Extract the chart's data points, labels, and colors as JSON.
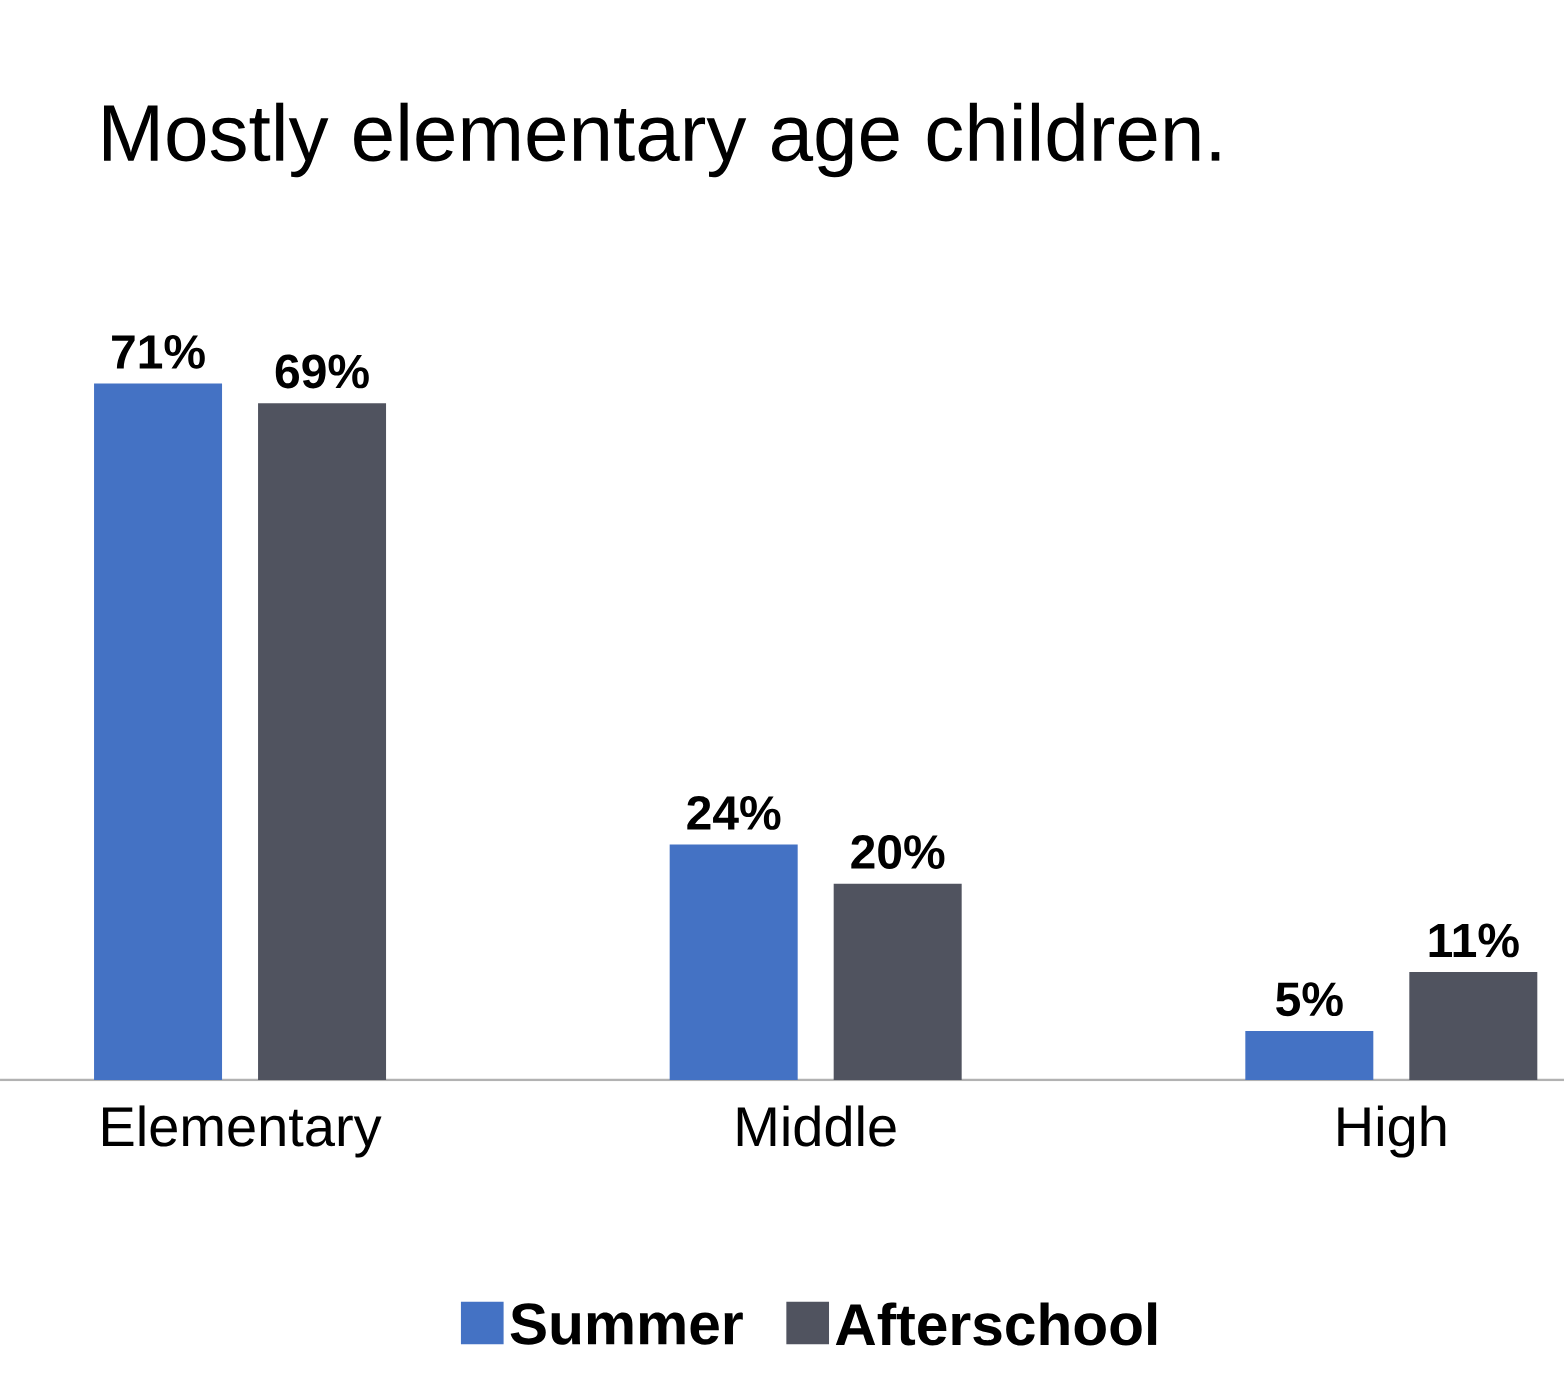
{
  "chart_data": {
    "type": "bar",
    "title": "Mostly elementary age children.",
    "categories": [
      "Elementary",
      "Middle",
      "High"
    ],
    "series": [
      {
        "name": "Summer",
        "color": "#4472c4",
        "values": [
          71,
          24,
          5
        ],
        "value_labels": [
          "71%",
          "24%",
          "5%"
        ]
      },
      {
        "name": "Afterschool",
        "color": "#50535f",
        "values": [
          69,
          20,
          11
        ],
        "value_labels": [
          "69%",
          "20%",
          "11%"
        ]
      }
    ],
    "legend": "bottom",
    "grid": false
  }
}
